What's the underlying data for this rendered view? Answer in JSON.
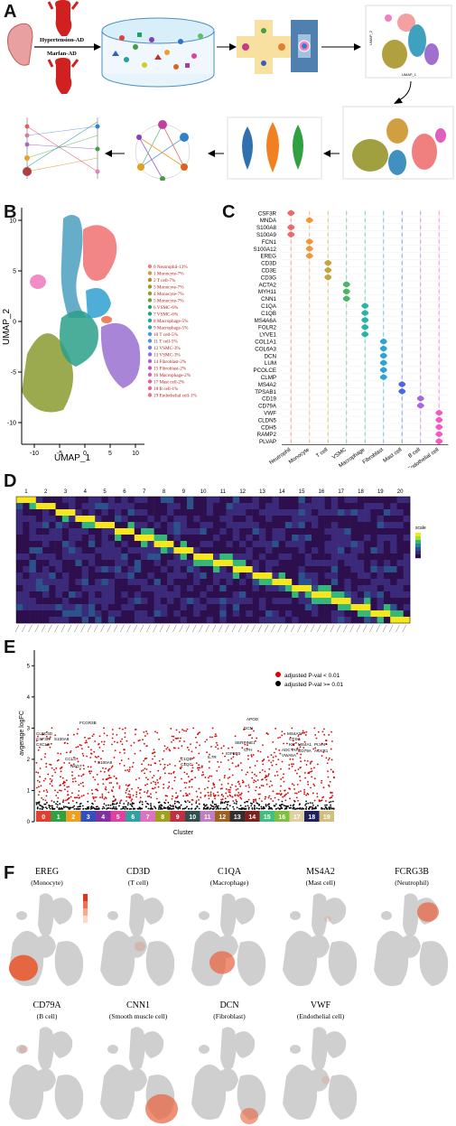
{
  "panels": {
    "a": {
      "label": "A",
      "arrow_top": "Hypertension-AD",
      "arrow_bottom": "Marfan-AD",
      "umap_y": "UMAP_2",
      "umap_x": "UMAP_1"
    },
    "b": {
      "label": "B",
      "xlabel": "UMAP_1",
      "ylabel": "UMAP_2",
      "xticks": [
        "-10",
        "-5",
        "0",
        "5",
        "10"
      ],
      "yticks": [
        "10",
        "5",
        "0",
        "-5",
        "-10"
      ],
      "legend": [
        "0 Neutrophil-13%",
        "1 Monocyte-7%",
        "2 T cell-7%",
        "3 Monocyte-7%",
        "4 Monocyte-7%",
        "5 Monocyte-7%",
        "6 VSMC-6%",
        "7 VSMC-6%",
        "8 Macrophage-5%",
        "9 Macrophage-5%",
        "10 T cell-5%",
        "11 T cell-5%",
        "12 VSMC-3%",
        "13 VSMC-3%",
        "14 Fibroblast-2%",
        "15 Fibroblast-2%",
        "16 Macrophage-2%",
        "17 Mast cell-2%",
        "18 B cell-1%",
        "19 Endothelial cell-1%"
      ],
      "colors": [
        "#f08080",
        "#c8a040",
        "#b08a30",
        "#9a9a20",
        "#8aa020",
        "#60a040",
        "#30a060",
        "#20a080",
        "#20a8a0",
        "#30a0c0",
        "#40a0d8",
        "#5090e0",
        "#7080e0",
        "#9070d8",
        "#b060d0",
        "#c858c0",
        "#d860b0",
        "#e060a0",
        "#e86890",
        "#f07080"
      ]
    },
    "c": {
      "label": "C",
      "genes": [
        "CSF3R",
        "MNDA",
        "S100A8",
        "S100A9",
        "FCN1",
        "S100A12",
        "EREG",
        "CD3D",
        "CD3E",
        "CD3G",
        "ACTA2",
        "MYH11",
        "CNN1",
        "C1QA",
        "C1QB",
        "MS4A6A",
        "FOLR2",
        "LYVE1",
        "COL1A1",
        "COL6A3",
        "DCN",
        "LUM",
        "PCOLCE",
        "CLMP",
        "MS4A2",
        "TPSAB1",
        "CD19",
        "CD79A",
        "VWF",
        "CLDN5",
        "CDH5",
        "RAMP2",
        "PLVAP"
      ],
      "cells": [
        "Neutrophil",
        "Monocyte",
        "T cell",
        "VSMC",
        "Macrophage",
        "Fibroblast",
        "Mast cell",
        "B cell",
        "Endothelial cell"
      ],
      "cell_colors": [
        "#f06060",
        "#f09030",
        "#c0a030",
        "#40b060",
        "#20b0a0",
        "#20a0d0",
        "#4060e0",
        "#a060e0",
        "#f050c0"
      ],
      "gene_cell": [
        0,
        1,
        0,
        0,
        1,
        1,
        1,
        2,
        2,
        2,
        3,
        3,
        3,
        4,
        4,
        4,
        4,
        4,
        5,
        5,
        5,
        5,
        5,
        5,
        6,
        6,
        7,
        7,
        8,
        8,
        8,
        8,
        8
      ]
    },
    "d": {
      "label": "D",
      "cols": [
        "1",
        "2",
        "3",
        "4",
        "5",
        "6",
        "7",
        "8",
        "9",
        "10",
        "11",
        "12",
        "13",
        "14",
        "15",
        "16",
        "17",
        "18",
        "19",
        "20"
      ],
      "legend_title": "scale"
    },
    "e": {
      "label": "E",
      "ylabel": "avgerage logFC",
      "xlabel": "Cluster",
      "yticks": [
        "5",
        "4",
        "3",
        "2",
        "1",
        "0"
      ],
      "legend_sig": "adjusted P-val < 0.01",
      "legend_ns": "adjusted P-val >= 0.01",
      "clusters": [
        "0",
        "1",
        "2",
        "3",
        "4",
        "5",
        "6",
        "7",
        "8",
        "9",
        "10",
        "11",
        "12",
        "13",
        "14",
        "15",
        "16",
        "17",
        "18",
        "19"
      ],
      "cluster_colors": [
        "#e04030",
        "#30a040",
        "#f0a020",
        "#3050c0",
        "#8030a0",
        "#e040a0",
        "#30a0a0",
        "#e070c0",
        "#a0a020",
        "#c03040",
        "#305050",
        "#c080c0",
        "#a06020",
        "#303030",
        "#802020",
        "#40c080",
        "#80c040",
        "#e0d0a0",
        "#202060",
        "#d0c080"
      ],
      "genes": [
        "FCGR3B",
        "CLEC4D",
        "CSF3R",
        "CXCL8",
        "S100A8",
        "CCL3",
        "NKG7",
        "S100A9",
        "C1QB",
        "C1QC",
        "IL7R",
        "APOD",
        "DCN",
        "SERPINE1",
        "CFH",
        "IGFBP3",
        "MS4A2",
        "CTSG",
        "KIT",
        "ADCYAP1",
        "VWA5A",
        "MS4A1",
        "CD79A",
        "PLVAP",
        "ACKR1"
      ]
    },
    "f": {
      "label": "F",
      "items": [
        {
          "gene": "EREG",
          "cell": "(Monocyte)"
        },
        {
          "gene": "CD3D",
          "cell": "(T cell)"
        },
        {
          "gene": "C1QA",
          "cell": "(Macrophage)"
        },
        {
          "gene": "MS4A2",
          "cell": "(Mast cell)"
        },
        {
          "gene": "FCRG3B",
          "cell": "(Neutrophil)"
        },
        {
          "gene": "CD79A",
          "cell": "(B cell)"
        },
        {
          "gene": "CNN1",
          "cell": "(Smooth muscle cell)"
        },
        {
          "gene": "DCN",
          "cell": "(Fibroblast)"
        },
        {
          "gene": "VWF",
          "cell": "(Endothelial cell)"
        }
      ]
    }
  }
}
